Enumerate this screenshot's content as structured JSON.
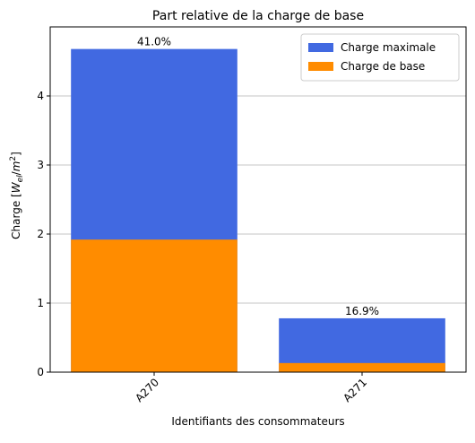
{
  "chart_data": {
    "type": "bar",
    "stacked": false,
    "title": "Part relative de la charge de base",
    "xlabel": "Identifiants des consommateurs",
    "ylabel": [
      "Charge [",
      "W",
      "el",
      "/",
      "m",
      "2",
      "]"
    ],
    "categories": [
      "A270",
      "A271"
    ],
    "series": [
      {
        "name": "Charge maximale",
        "color": "#4169e1",
        "values": [
          4.68,
          0.78
        ]
      },
      {
        "name": "Charge de base",
        "color": "#ff8c00",
        "values": [
          1.92,
          0.132
        ]
      }
    ],
    "annotations": [
      "41.0%",
      "16.9%"
    ],
    "ylim": [
      0,
      5.0
    ],
    "yticks": [
      0,
      1,
      2,
      3,
      4
    ],
    "grid": true,
    "legend": "upper right"
  }
}
